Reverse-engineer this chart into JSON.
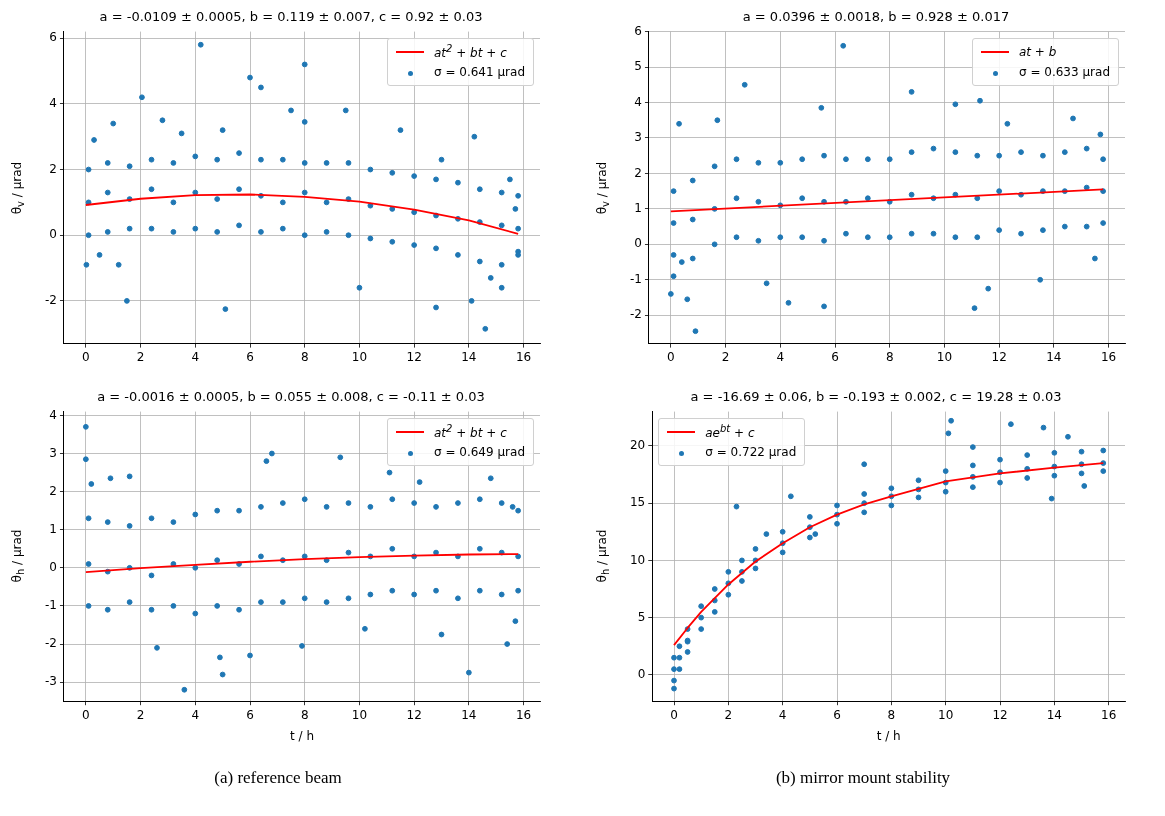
{
  "chart_data": [
    {
      "type": "scatter",
      "title": "a = -0.0109 ± 0.0005, b = 0.119 ± 0.007, c = 0.92 ± 0.03",
      "ylabel": "θ$_{v}$ / μrad",
      "xlim": [
        -0.8,
        16.6
      ],
      "ylim": [
        -3.3,
        6.2
      ],
      "xticks": [
        0,
        2,
        4,
        6,
        8,
        10,
        12,
        14,
        16
      ],
      "yticks": [
        -2,
        0,
        2,
        4,
        6
      ],
      "grid": true,
      "legend": "top right",
      "series": [
        {
          "name": "at$^{2}$ + bt + c",
          "type": "line",
          "marker": "none",
          "color": "#ff0000",
          "x": [
            0,
            2,
            4,
            6,
            8,
            10,
            12,
            14,
            15.8
          ],
          "values": [
            0.92,
            1.11,
            1.22,
            1.24,
            1.17,
            1.02,
            0.78,
            0.45,
            0.04
          ]
        },
        {
          "name": "σ = 0.641 μrad",
          "type": "scatter",
          "marker": "circle",
          "color": "#1f77b4",
          "x": [
            0.02,
            1.5,
            2.05,
            4.2,
            5.1,
            6,
            6.4,
            8,
            8,
            9.5,
            12.8,
            14.1,
            14.6,
            14.2,
            1,
            2.8,
            7.5,
            0.3,
            0.5,
            1.2,
            3.5,
            5,
            10,
            11.5,
            13,
            15.5,
            15.2,
            14.8,
            15.8,
            15.7,
            0.1,
            0.1,
            0.1,
            0.8,
            0.8,
            0.8,
            1.6,
            1.6,
            1.6,
            2.4,
            2.4,
            2.4,
            3.2,
            3.2,
            3.2,
            4,
            4,
            4,
            4.8,
            4.8,
            4.8,
            5.6,
            5.6,
            5.6,
            6.4,
            6.4,
            6.4,
            7.2,
            7.2,
            7.2,
            8,
            8,
            8,
            8.8,
            8.8,
            8.8,
            9.6,
            9.6,
            9.6,
            10.4,
            10.4,
            10.4,
            11.2,
            11.2,
            11.2,
            12,
            12,
            12,
            12.8,
            12.8,
            12.8,
            13.6,
            13.6,
            13.6,
            14.4,
            14.4,
            14.4,
            15.2,
            15.2,
            15.2,
            15.8,
            15.8,
            15.8
          ],
          "values": [
            -0.9,
            -2,
            4.2,
            5.8,
            -2.25,
            4.8,
            4.5,
            5.2,
            3.45,
            3.8,
            -2.2,
            -2,
            -2.85,
            3,
            3.4,
            3.5,
            3.8,
            2.9,
            -0.6,
            -0.9,
            3.1,
            3.2,
            -1.6,
            3.2,
            2.3,
            1.7,
            -1.6,
            -1.3,
            -0.5,
            0.8,
            2,
            1,
            0,
            2.2,
            1.3,
            0.1,
            2.1,
            1.1,
            0.2,
            2.3,
            1.4,
            0.2,
            2.2,
            1,
            0.1,
            2.4,
            1.3,
            0.2,
            2.3,
            1.1,
            0.1,
            2.5,
            1.4,
            0.3,
            2.3,
            1.2,
            0.1,
            2.3,
            1,
            0.2,
            2.2,
            1.3,
            0,
            2.2,
            1,
            0.1,
            2.2,
            1.1,
            0,
            2,
            0.9,
            -0.1,
            1.9,
            0.8,
            -0.2,
            1.8,
            0.7,
            -0.3,
            1.7,
            0.6,
            -0.4,
            1.6,
            0.5,
            -0.6,
            1.4,
            0.4,
            -0.8,
            1.3,
            0.3,
            -0.9,
            1.2,
            0.2,
            -0.6
          ]
        }
      ]
    },
    {
      "type": "scatter",
      "title": "a = 0.0396 ± 0.0018, b = 0.928 ± 0.017",
      "ylabel": "θ$_{v}$ / μrad",
      "xlim": [
        -0.8,
        16.6
      ],
      "ylim": [
        -2.8,
        6
      ],
      "xticks": [
        0,
        2,
        4,
        6,
        8,
        10,
        12,
        14,
        16
      ],
      "yticks": [
        -2,
        -1,
        0,
        1,
        2,
        3,
        4,
        5,
        6
      ],
      "grid": true,
      "legend": "top right",
      "series": [
        {
          "name": "at + b",
          "type": "line",
          "marker": "none",
          "color": "#ff0000",
          "x": [
            0,
            15.8
          ],
          "values": [
            0.93,
            1.55
          ]
        },
        {
          "name": "σ = 0.633 μrad",
          "type": "scatter",
          "marker": "circle",
          "color": "#1f77b4",
          "x": [
            0,
            0.9,
            0.6,
            2.7,
            6.3,
            8.8,
            11.3,
            10.4,
            11.1,
            11.6,
            5.6,
            4.3,
            14.7,
            0.3,
            1.7,
            5.5,
            13.5,
            15.5,
            15.7,
            3.5,
            12.3,
            0.1,
            0.4,
            0.1,
            0.1,
            0.1,
            0.8,
            0.8,
            0.8,
            1.6,
            1.6,
            1.6,
            2.4,
            2.4,
            2.4,
            3.2,
            3.2,
            3.2,
            4,
            4,
            4,
            4.8,
            4.8,
            4.8,
            5.6,
            5.6,
            5.6,
            6.4,
            6.4,
            6.4,
            7.2,
            7.2,
            7.2,
            8,
            8,
            8,
            8.8,
            8.8,
            8.8,
            9.6,
            9.6,
            9.6,
            10.4,
            10.4,
            10.4,
            11.2,
            11.2,
            11.2,
            12,
            12,
            12,
            12.8,
            12.8,
            12.8,
            13.6,
            13.6,
            13.6,
            14.4,
            14.4,
            14.4,
            15.2,
            15.2,
            15.2,
            15.8,
            15.8,
            15.8
          ],
          "values": [
            -1.4,
            -2.45,
            -1.55,
            4.5,
            5.6,
            4.3,
            4.05,
            3.95,
            -1.8,
            -1.25,
            -1.75,
            -1.65,
            3.55,
            3.4,
            3.5,
            3.85,
            -1,
            -0.4,
            3.1,
            -1.1,
            3.4,
            -0.9,
            -0.5,
            1.5,
            0.6,
            -0.3,
            1.8,
            0.7,
            -0.4,
            2.2,
            1,
            0,
            2.4,
            1.3,
            0.2,
            2.3,
            1.2,
            0.1,
            2.3,
            1.1,
            0.2,
            2.4,
            1.3,
            0.2,
            2.5,
            1.2,
            0.1,
            2.4,
            1.2,
            0.3,
            2.4,
            1.3,
            0.2,
            2.4,
            1.2,
            0.2,
            2.6,
            1.4,
            0.3,
            2.7,
            1.3,
            0.3,
            2.6,
            1.4,
            0.2,
            2.5,
            1.3,
            0.2,
            2.5,
            1.5,
            0.4,
            2.6,
            1.4,
            0.3,
            2.5,
            1.5,
            0.4,
            2.6,
            1.5,
            0.5,
            2.7,
            1.6,
            0.5,
            2.4,
            1.5,
            0.6
          ]
        }
      ]
    },
    {
      "type": "scatter",
      "title": "a = -0.0016 ± 0.0005, b = 0.055 ± 0.008, c = -0.11 ± 0.03",
      "xlabel": "t / h",
      "ylabel": "θ$_{h}$ / μrad",
      "xlim": [
        -0.8,
        16.6
      ],
      "ylim": [
        -3.5,
        4.1
      ],
      "xticks": [
        0,
        2,
        4,
        6,
        8,
        10,
        12,
        14,
        16
      ],
      "yticks": [
        -3,
        -2,
        -1,
        0,
        1,
        2,
        3,
        4
      ],
      "grid": true,
      "legend": "top right",
      "annotations": [
        "(a) reference beam"
      ],
      "series": [
        {
          "name": "at$^{2}$ + bt + c",
          "type": "line",
          "marker": "none",
          "color": "#ff0000",
          "x": [
            0,
            2,
            4,
            6,
            8,
            10,
            12,
            14,
            15.8
          ],
          "values": [
            -0.11,
            -0.01,
            0.08,
            0.16,
            0.23,
            0.28,
            0.32,
            0.35,
            0.36
          ]
        },
        {
          "name": "σ = 0.649 μrad",
          "type": "scatter",
          "marker": "circle",
          "color": "#1f77b4",
          "x": [
            0,
            0,
            0.2,
            1.6,
            3.6,
            5,
            4.9,
            6.8,
            6.6,
            9.3,
            14,
            15.4,
            11.1,
            7.9,
            2.6,
            0.9,
            12.2,
            14.8,
            6,
            10.2,
            13,
            15.7,
            15.6,
            0.1,
            0.1,
            0.1,
            0.8,
            0.8,
            0.8,
            1.6,
            1.6,
            1.6,
            2.4,
            2.4,
            2.4,
            3.2,
            3.2,
            3.2,
            4,
            4,
            4,
            4.8,
            4.8,
            4.8,
            5.6,
            5.6,
            5.6,
            6.4,
            6.4,
            6.4,
            7.2,
            7.2,
            7.2,
            8,
            8,
            8,
            8.8,
            8.8,
            8.8,
            9.6,
            9.6,
            9.6,
            10.4,
            10.4,
            10.4,
            11.2,
            11.2,
            11.2,
            12,
            12,
            12,
            12.8,
            12.8,
            12.8,
            13.6,
            13.6,
            13.6,
            14.4,
            14.4,
            14.4,
            15.2,
            15.2,
            15.2,
            15.8,
            15.8,
            15.8
          ],
          "values": [
            3.7,
            2.85,
            2.2,
            2.4,
            -3.2,
            -2.8,
            -2.35,
            3,
            2.8,
            2.9,
            -2.75,
            -2,
            2.5,
            -2.05,
            -2.1,
            2.35,
            2.25,
            2.35,
            -2.3,
            -1.6,
            -1.75,
            -1.4,
            1.6,
            1.3,
            0.1,
            -1,
            1.2,
            -0.1,
            -1.1,
            1.1,
            0,
            -0.9,
            1.3,
            -0.2,
            -1.1,
            1.2,
            0.1,
            -1,
            1.4,
            0,
            -1.2,
            1.5,
            0.2,
            -1,
            1.5,
            0.1,
            -1.1,
            1.6,
            0.3,
            -0.9,
            1.7,
            0.2,
            -0.9,
            1.8,
            0.3,
            -0.8,
            1.6,
            0.2,
            -0.9,
            1.7,
            0.4,
            -0.8,
            1.6,
            0.3,
            -0.7,
            1.8,
            0.5,
            -0.6,
            1.7,
            0.3,
            -0.7,
            1.6,
            0.4,
            -0.6,
            1.7,
            0.3,
            -0.8,
            1.8,
            0.5,
            -0.6,
            1.7,
            0.4,
            -0.7,
            1.5,
            0.3,
            -0.6
          ]
        }
      ]
    },
    {
      "type": "scatter",
      "title": "a = -16.69 ± 0.06, b = -0.193 ± 0.002, c = 19.28 ± 0.03",
      "xlabel": "t / h",
      "ylabel": "θ$_{h}$ / μrad",
      "xlim": [
        -0.8,
        16.6
      ],
      "ylim": [
        -2.3,
        23
      ],
      "xticks": [
        0,
        2,
        4,
        6,
        8,
        10,
        12,
        14,
        16
      ],
      "yticks": [
        0,
        5,
        10,
        15,
        20
      ],
      "grid": true,
      "legend": "top left",
      "annotations": [
        "(b) mirror mount stability"
      ],
      "series": [
        {
          "name": "ae$^{bt}$ + c",
          "type": "line",
          "marker": "none",
          "color": "#ff0000",
          "x": [
            0,
            0.5,
            1,
            2,
            3,
            4,
            5,
            6,
            7,
            8,
            10,
            12,
            14,
            15.8
          ],
          "values": [
            2.6,
            4.1,
            5.5,
            7.9,
            9.9,
            11.5,
            12.9,
            14,
            14.9,
            15.6,
            16.9,
            17.6,
            18.1,
            18.5
          ]
        },
        {
          "name": "σ = 0.722 μrad",
          "type": "scatter",
          "marker": "circle",
          "color": "#1f77b4",
          "x": [
            0,
            0.5,
            3.4,
            7,
            10.1,
            10.2,
            12.4,
            13.6,
            13.9,
            15.1,
            11,
            14.5,
            2.3,
            5.2,
            4.3,
            0,
            0,
            0,
            0.2,
            0.2,
            0.2,
            0.5,
            0.5,
            0.5,
            1,
            1,
            1,
            1.5,
            1.5,
            1.5,
            2,
            2,
            2,
            2.5,
            2.5,
            2.5,
            3,
            3,
            3,
            4,
            4,
            4,
            5,
            5,
            5,
            6,
            6,
            6,
            7,
            7,
            7,
            8,
            8,
            8,
            9,
            9,
            9,
            10,
            10,
            10,
            11,
            11,
            11,
            12,
            12,
            12,
            13,
            13,
            13,
            14,
            14,
            14,
            15,
            15,
            15,
            15.8,
            15.8,
            15.8
          ],
          "values": [
            -1.2,
            2.9,
            12.3,
            18.4,
            21.1,
            22.2,
            21.9,
            21.6,
            15.4,
            16.5,
            19.9,
            20.8,
            14.7,
            12.3,
            15.6,
            1.5,
            0.5,
            -0.5,
            2.5,
            1.5,
            0.5,
            4,
            3,
            2,
            6,
            5,
            4,
            7.5,
            6.5,
            5.5,
            9,
            8,
            7,
            10,
            9,
            8.2,
            11,
            10,
            9.3,
            12.5,
            11.5,
            10.7,
            13.8,
            12.9,
            12,
            14.8,
            14,
            13.2,
            15.8,
            15,
            14.2,
            16.3,
            15.6,
            14.8,
            17,
            16.2,
            15.5,
            17.8,
            16.8,
            16,
            18.3,
            17.3,
            16.4,
            18.8,
            17.7,
            16.8,
            19.2,
            18,
            17.2,
            19.4,
            18.2,
            17.4,
            19.5,
            18.4,
            17.6,
            19.6,
            18.5,
            17.8
          ]
        }
      ]
    }
  ]
}
